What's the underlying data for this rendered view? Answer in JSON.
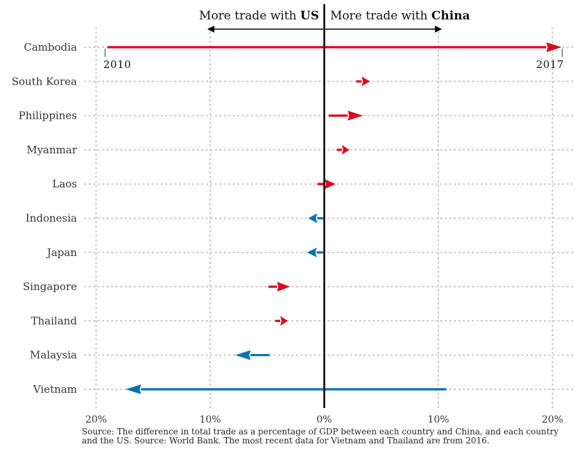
{
  "chart_data": {
    "type": "arrow",
    "header": {
      "left_prefix": "More trade with ",
      "left_bold": "US",
      "right_prefix": "More trade with ",
      "right_bold": "China"
    },
    "categories": [
      "Cambodia",
      "South Korea",
      "Philippines",
      "Myanmar",
      "Laos",
      "Indonesia",
      "Japan",
      "Singapore",
      "Thailand",
      "Malaysia",
      "Vietnam"
    ],
    "series": [
      {
        "values_2010": [
          -19.0,
          2.8,
          0.4,
          1.1,
          -0.6,
          -0.1,
          -0.1,
          -4.9,
          -4.3,
          -4.8,
          10.7
        ],
        "values_2017": [
          20.8,
          4.0,
          3.4,
          2.2,
          1.0,
          -1.4,
          -1.5,
          -3.0,
          -3.2,
          -7.8,
          -17.4
        ]
      }
    ],
    "year_labels": {
      "start": "2010",
      "end": "2017"
    },
    "x_ticks": [
      "20%",
      "10%",
      "0%",
      "10%",
      "20%"
    ],
    "x_tick_values": [
      -20,
      -10,
      0,
      10,
      20
    ],
    "xlim": [
      -20,
      20
    ],
    "grid": "dotted",
    "colors": {
      "china": "#e0001b",
      "us": "#0072b2",
      "axis": "#000000",
      "grid": "#c8c8c8"
    }
  },
  "source": "Source: The difference in total trade as a percentage of GDP between each country and China, and each country and the US. Source: World Bank. The most recent data for Vietnam and Thailand are from 2016."
}
